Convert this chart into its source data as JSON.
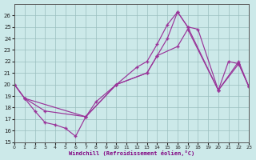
{
  "xlabel": "Windchill (Refroidissement éolien,°C)",
  "xlim": [
    0,
    23
  ],
  "ylim": [
    15,
    27
  ],
  "yticks": [
    15,
    16,
    17,
    18,
    19,
    20,
    21,
    22,
    23,
    24,
    25,
    26
  ],
  "xticks": [
    0,
    1,
    2,
    3,
    4,
    5,
    6,
    7,
    8,
    9,
    10,
    11,
    12,
    13,
    14,
    15,
    16,
    17,
    18,
    19,
    20,
    21,
    22,
    23
  ],
  "bg_color": "#cce9e9",
  "grid_color": "#9bbebe",
  "line_color": "#993399",
  "line1_x": [
    0,
    1,
    2,
    3,
    4,
    5,
    6,
    7,
    8,
    10,
    12,
    13,
    14,
    15,
    16,
    17,
    18,
    20,
    21,
    22,
    23
  ],
  "line1_y": [
    20.0,
    18.8,
    17.7,
    16.7,
    16.5,
    16.2,
    15.5,
    17.2,
    18.5,
    20.0,
    21.5,
    22.0,
    23.5,
    25.2,
    26.3,
    25.0,
    24.8,
    19.5,
    22.0,
    21.8,
    19.8
  ],
  "line2_x": [
    0,
    1,
    3,
    7,
    10,
    13,
    14,
    15,
    16,
    17,
    20,
    22,
    23
  ],
  "line2_y": [
    20.0,
    18.8,
    17.7,
    17.2,
    20.0,
    21.0,
    22.5,
    24.0,
    26.3,
    25.0,
    19.5,
    22.0,
    19.8
  ],
  "line3_x": [
    0,
    1,
    7,
    10,
    13,
    14,
    16,
    17,
    20,
    22,
    23
  ],
  "line3_y": [
    20.0,
    18.8,
    17.2,
    20.0,
    21.0,
    22.5,
    23.3,
    24.8,
    19.5,
    21.8,
    19.8
  ]
}
